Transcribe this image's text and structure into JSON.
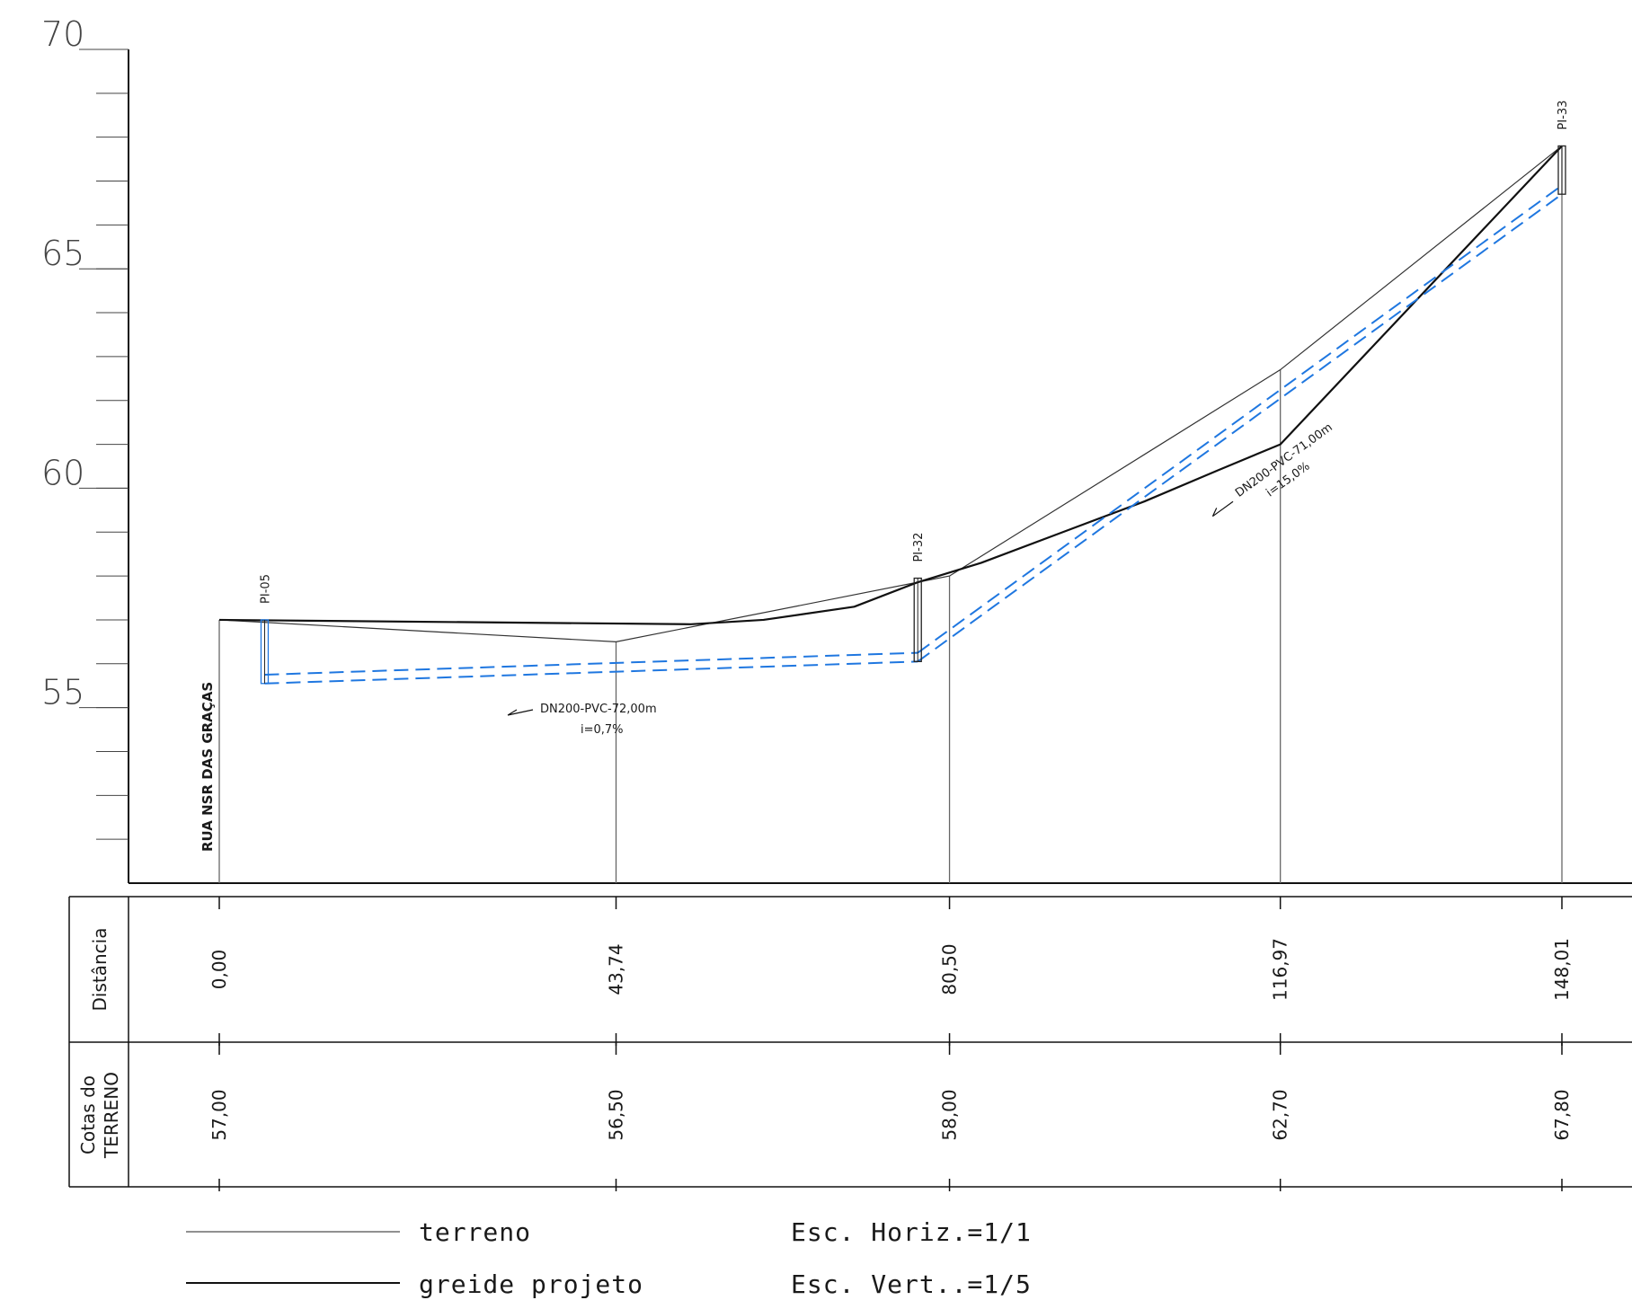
{
  "chart_data": {
    "type": "line",
    "title": "",
    "ylim": [
      51,
      70
    ],
    "y_ticks": [
      "55",
      "60",
      "65",
      "70"
    ],
    "xlim": [
      -20,
      157
    ],
    "stations": [
      0.0,
      43.74,
      80.5,
      116.97,
      148.01
    ],
    "table": {
      "rows": [
        {
          "label_lines": [
            "Distância"
          ],
          "values": [
            "0,00",
            "43,74",
            "80,50",
            "116,97",
            "148,01"
          ]
        },
        {
          "label_lines": [
            "Cotas do",
            "TERRENO"
          ],
          "values": [
            "57,00",
            "56,50",
            "58,00",
            "62,70",
            "67,80"
          ]
        }
      ]
    },
    "series": [
      {
        "name": "terreno",
        "x": [
          0.0,
          43.74,
          80.5,
          116.97,
          148.01
        ],
        "y": [
          57.0,
          56.5,
          58.0,
          62.7,
          67.8
        ]
      },
      {
        "name": "greide projeto",
        "x": [
          0.0,
          52.0,
          60.0,
          70.0,
          76.9,
          84.0,
          93.0,
          102.0,
          110.0,
          116.97,
          148.01
        ],
        "y": [
          57.0,
          56.9,
          57.0,
          57.3,
          57.85,
          58.3,
          59.0,
          59.7,
          60.4,
          61.0,
          67.8
        ]
      }
    ],
    "manholes": [
      {
        "label": "PI-05",
        "x": 5.0,
        "top": 57.0,
        "bottom": 55.55
      },
      {
        "label": "PI-32",
        "x": 77.0,
        "top": 57.95,
        "bottom": 56.05
      },
      {
        "label": "PI-33",
        "x": 148.01,
        "top": 67.8,
        "bottom": 66.7
      }
    ],
    "pipes": [
      {
        "x1": 5.0,
        "x2": 77.0,
        "upper": [
          55.75,
          56.25
        ],
        "lower": [
          55.55,
          56.05
        ]
      },
      {
        "x1": 77.0,
        "x2": 148.01,
        "upper": [
          56.25,
          66.9
        ],
        "lower": [
          56.05,
          66.7
        ]
      }
    ],
    "annotations": [
      {
        "text_lines": [
          "DN200-PVC-72,00m",
          "i=0,7%"
        ]
      },
      {
        "text_lines": [
          "DN200-PVC-71,00m",
          "i=15,0%"
        ]
      }
    ],
    "street": "RUA NSR DAS GRAÇAS",
    "legend": [
      {
        "label": "terreno",
        "style": "thin"
      },
      {
        "label": "greide projeto",
        "style": "thick"
      }
    ],
    "scales": [
      "Esc. Horiz.=1/1",
      "Esc. Vert..=1/5"
    ],
    "colors": {
      "pipe": "#1f77e0",
      "ink": "#111111",
      "gray": "#555555"
    }
  }
}
